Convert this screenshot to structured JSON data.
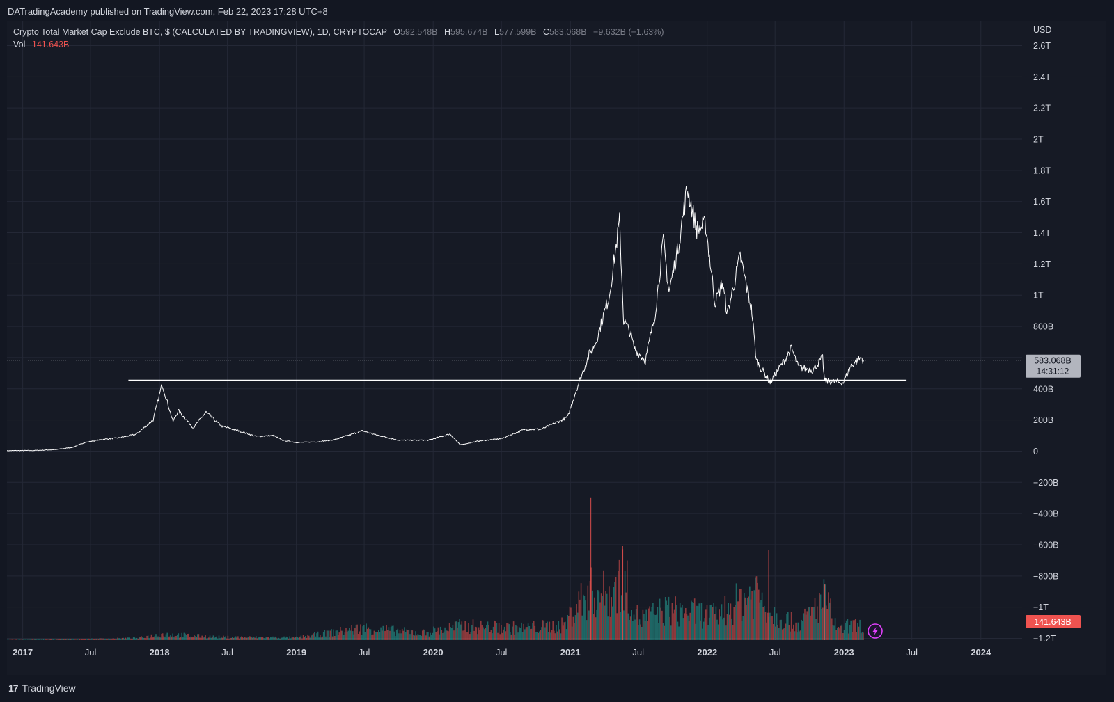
{
  "header": {
    "published": "DATradingAcademy published on TradingView.com, Feb 22, 2023 17:28 UTC+8"
  },
  "legend": {
    "symbol": "Crypto Total Market Cap Exclude BTC, $ (CALCULATED BY TRADINGVIEW), 1D, CRYPTOCAP",
    "o_label": "O",
    "o_value": "592.548B",
    "h_label": "H",
    "h_value": "595.674B",
    "l_label": "L",
    "l_value": "577.599B",
    "c_label": "C",
    "c_value": "583.068B",
    "change": "−9.632B (−1.63%)",
    "vol_label": "Vol",
    "vol_value": "141.643B"
  },
  "price_axis": {
    "currency": "USD",
    "last_price": "583.068B",
    "countdown": "14:31:12",
    "vol_badge": "141.643B"
  },
  "footer": {
    "brand": "TradingView"
  },
  "colors": {
    "background": "#161a25",
    "line": "#ffffff",
    "vol_up": "#26a69a",
    "vol_down": "#ef5350",
    "grid": "#242836",
    "axis_text": "#d1d4dc"
  },
  "icons": {
    "lightning": "lightning-icon",
    "logo": "tradingview-logo-icon"
  },
  "chart_data": {
    "type": "line",
    "title": "Crypto Total Market Cap Exclude BTC, $ (CALCULATED BY TRADINGVIEW), 1D, CRYPTOCAP",
    "xlabel": "",
    "ylabel": "",
    "y_unit": "USD",
    "ylim_billion": [
      -1200,
      2600
    ],
    "y_ticks": [
      "2.6T",
      "2.4T",
      "2.2T",
      "2T",
      "1.8T",
      "1.6T",
      "1.4T",
      "1.2T",
      "1T",
      "800B",
      "",
      "400B",
      "200B",
      "0",
      "−200B",
      "−400B",
      "−600B",
      "−800B",
      "−1T",
      "−1.2T"
    ],
    "y_tick_values_billion": [
      2600,
      2400,
      2200,
      2000,
      1800,
      1600,
      1400,
      1200,
      1000,
      800,
      600,
      400,
      200,
      0,
      -200,
      -400,
      -600,
      -800,
      -1000,
      -1200
    ],
    "x_ticks": [
      {
        "date": "2017-01-01",
        "label": "2017",
        "major": true
      },
      {
        "date": "2017-07-01",
        "label": "Jul",
        "major": false
      },
      {
        "date": "2018-01-01",
        "label": "2018",
        "major": true
      },
      {
        "date": "2018-07-01",
        "label": "Jul",
        "major": false
      },
      {
        "date": "2019-01-01",
        "label": "2019",
        "major": true
      },
      {
        "date": "2019-07-01",
        "label": "Jul",
        "major": false
      },
      {
        "date": "2020-01-01",
        "label": "2020",
        "major": true
      },
      {
        "date": "2020-07-01",
        "label": "Jul",
        "major": false
      },
      {
        "date": "2021-01-01",
        "label": "2021",
        "major": true
      },
      {
        "date": "2021-07-01",
        "label": "Jul",
        "major": false
      },
      {
        "date": "2022-01-01",
        "label": "2022",
        "major": true
      },
      {
        "date": "2022-07-01",
        "label": "Jul",
        "major": false
      },
      {
        "date": "2023-01-01",
        "label": "2023",
        "major": true
      },
      {
        "date": "2023-07-01",
        "label": "Jul",
        "major": false
      },
      {
        "date": "2024-01-01",
        "label": "2024",
        "major": true
      }
    ],
    "xlim": [
      "2016-11-20",
      "2024-04-20"
    ],
    "series": [
      {
        "values_unit": "billion USD",
        "points": [
          [
            "2016-11-20",
            3
          ],
          [
            "2017-02-01",
            4
          ],
          [
            "2017-04-01",
            10
          ],
          [
            "2017-05-15",
            25
          ],
          [
            "2017-06-15",
            55
          ],
          [
            "2017-08-01",
            75
          ],
          [
            "2017-09-15",
            85
          ],
          [
            "2017-11-01",
            110
          ],
          [
            "2017-12-15",
            200
          ],
          [
            "2018-01-08",
            430
          ],
          [
            "2018-01-20",
            330
          ],
          [
            "2018-02-06",
            190
          ],
          [
            "2018-02-20",
            260
          ],
          [
            "2018-04-01",
            150
          ],
          [
            "2018-05-05",
            250
          ],
          [
            "2018-06-15",
            160
          ],
          [
            "2018-08-01",
            130
          ],
          [
            "2018-09-15",
            95
          ],
          [
            "2018-11-01",
            100
          ],
          [
            "2018-11-25",
            70
          ],
          [
            "2019-01-01",
            55
          ],
          [
            "2019-03-01",
            60
          ],
          [
            "2019-04-15",
            75
          ],
          [
            "2019-06-26",
            130
          ],
          [
            "2019-08-01",
            105
          ],
          [
            "2019-10-01",
            70
          ],
          [
            "2019-12-20",
            70
          ],
          [
            "2020-02-15",
            110
          ],
          [
            "2020-03-13",
            40
          ],
          [
            "2020-05-01",
            65
          ],
          [
            "2020-07-01",
            80
          ],
          [
            "2020-09-01",
            140
          ],
          [
            "2020-10-15",
            140
          ],
          [
            "2020-12-01",
            190
          ],
          [
            "2020-12-25",
            220
          ],
          [
            "2021-01-15",
            380
          ],
          [
            "2021-02-20",
            620
          ],
          [
            "2021-03-10",
            700
          ],
          [
            "2021-04-15",
            1000
          ],
          [
            "2021-05-12",
            1470
          ],
          [
            "2021-05-23",
            840
          ],
          [
            "2021-06-10",
            760
          ],
          [
            "2021-06-20",
            660
          ],
          [
            "2021-07-20",
            580
          ],
          [
            "2021-08-15",
            880
          ],
          [
            "2021-09-06",
            1350
          ],
          [
            "2021-09-21",
            1020
          ],
          [
            "2021-10-15",
            1300
          ],
          [
            "2021-11-09",
            1690
          ],
          [
            "2021-12-04",
            1420
          ],
          [
            "2021-12-28",
            1450
          ],
          [
            "2022-01-22",
            950
          ],
          [
            "2022-02-10",
            1080
          ],
          [
            "2022-02-24",
            880
          ],
          [
            "2022-03-30",
            1250
          ],
          [
            "2022-04-30",
            900
          ],
          [
            "2022-05-12",
            580
          ],
          [
            "2022-06-18",
            440
          ],
          [
            "2022-07-20",
            560
          ],
          [
            "2022-08-14",
            660
          ],
          [
            "2022-09-01",
            540
          ],
          [
            "2022-10-10",
            520
          ],
          [
            "2022-11-05",
            600
          ],
          [
            "2022-11-10",
            450
          ],
          [
            "2022-12-30",
            440
          ],
          [
            "2023-01-20",
            550
          ],
          [
            "2023-02-16",
            600
          ],
          [
            "2023-02-22",
            583
          ]
        ]
      }
    ],
    "annotations": [
      {
        "type": "horizontal_line",
        "from": "2017-10-10",
        "to": "2023-06-15",
        "value_billion": 455
      }
    ],
    "last_price_billion": 583.068,
    "volume": {
      "name": "Vol",
      "last_billion": 141.643,
      "envelope_billion": [
        [
          "2016-11-20",
          2
        ],
        [
          "2017-06-01",
          8
        ],
        [
          "2017-11-01",
          20
        ],
        [
          "2018-01-08",
          60
        ],
        [
          "2018-06-01",
          30
        ],
        [
          "2019-01-01",
          25
        ],
        [
          "2019-06-26",
          120
        ],
        [
          "2019-12-01",
          70
        ],
        [
          "2020-03-13",
          140
        ],
        [
          "2020-09-01",
          120
        ],
        [
          "2020-12-15",
          150
        ],
        [
          "2021-01-15",
          350
        ],
        [
          "2021-02-23",
          480
        ],
        [
          "2021-04-15",
          450
        ],
        [
          "2021-05-19",
          640
        ],
        [
          "2021-07-01",
          200
        ],
        [
          "2021-09-07",
          300
        ],
        [
          "2021-11-10",
          280
        ],
        [
          "2022-01-22",
          240
        ],
        [
          "2022-05-12",
          500
        ],
        [
          "2022-06-18",
          280
        ],
        [
          "2022-09-01",
          150
        ],
        [
          "2022-11-09",
          420
        ],
        [
          "2022-12-15",
          90
        ],
        [
          "2023-01-15",
          150
        ],
        [
          "2023-02-22",
          140
        ]
      ],
      "spikes_billion": [
        [
          "2021-02-23",
          1150
        ],
        [
          "2021-05-19",
          760
        ],
        [
          "2022-06-13",
          730
        ],
        [
          "2022-11-09",
          450
        ]
      ],
      "vol_ylim_billion": [
        0,
        1250
      ]
    },
    "grid": true,
    "legend": "top-left"
  }
}
